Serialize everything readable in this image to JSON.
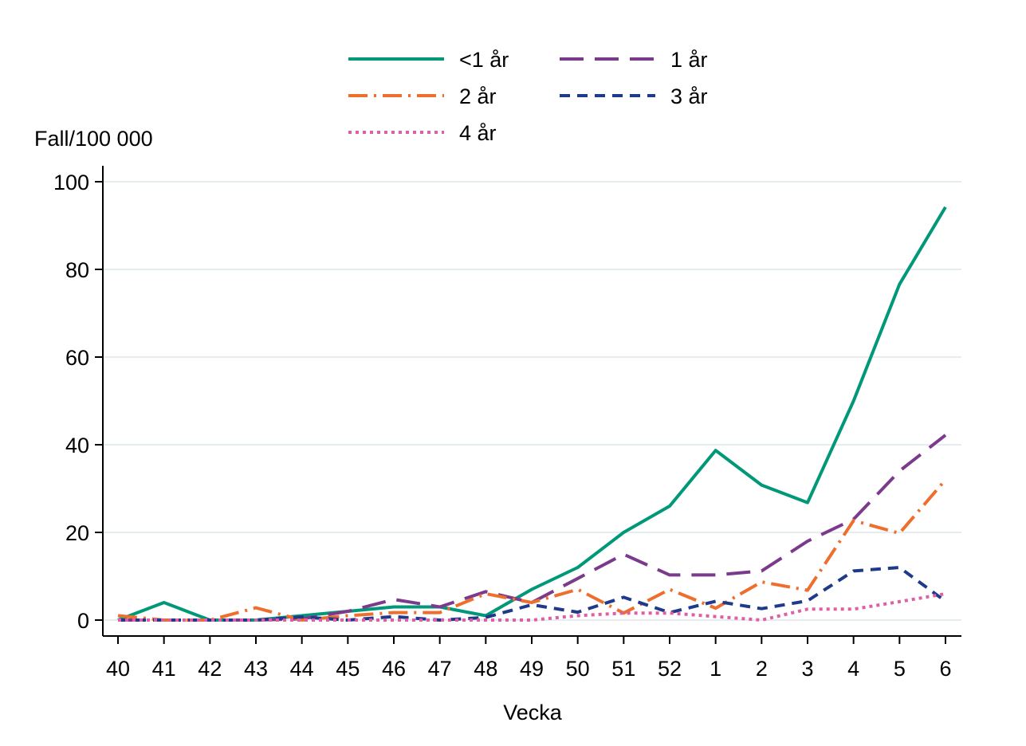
{
  "chart_data": {
    "type": "line",
    "title": "",
    "xlabel": "Vecka",
    "ylabel": "Fall/100 000",
    "categories": [
      "40",
      "41",
      "42",
      "43",
      "44",
      "45",
      "46",
      "47",
      "48",
      "49",
      "50",
      "51",
      "52",
      "1",
      "2",
      "3",
      "4",
      "5",
      "6"
    ],
    "ylim": [
      0,
      100
    ],
    "yticks": [
      0,
      20,
      40,
      60,
      80,
      100
    ],
    "grid": true,
    "legend_position": "top",
    "series": [
      {
        "name": "<1 år",
        "color": "#009878",
        "dash": "solid",
        "values": [
          0,
          4,
          0,
          0,
          1,
          2,
          3,
          3,
          1,
          7,
          12,
          20,
          26,
          38.7,
          30.8,
          26.8,
          50,
          76.6,
          94.2
        ]
      },
      {
        "name": "1 år",
        "color": "#7B3A8C",
        "dash": "long-dash",
        "values": [
          0,
          0,
          0,
          0,
          0.3,
          2,
          4.7,
          3,
          6.5,
          4,
          9.5,
          15,
          10.3,
          10.3,
          11.2,
          18,
          23,
          34,
          42.2
        ]
      },
      {
        "name": "2 år",
        "color": "#EE6F2D",
        "dash": "dash-dot",
        "values": [
          1,
          0,
          0,
          2.8,
          0,
          1,
          1.7,
          1.7,
          6,
          4,
          7,
          1.6,
          7,
          2.7,
          8.7,
          6.8,
          22.7,
          19.8,
          32
        ]
      },
      {
        "name": "3 år",
        "color": "#1F3A8A",
        "dash": "short-dash",
        "values": [
          0,
          0,
          0,
          0,
          0.7,
          0,
          0.8,
          0,
          0.6,
          3.5,
          1.8,
          5.2,
          1.7,
          4.3,
          2.6,
          4.4,
          11.2,
          12,
          4.3
        ]
      },
      {
        "name": "4 år",
        "color": "#E05EA5",
        "dash": "dotted",
        "values": [
          0,
          0,
          0,
          0,
          0,
          0,
          0,
          0,
          0,
          0,
          1,
          1.6,
          1.6,
          0.8,
          0,
          2.5,
          2.5,
          4.2,
          6
        ]
      }
    ]
  }
}
